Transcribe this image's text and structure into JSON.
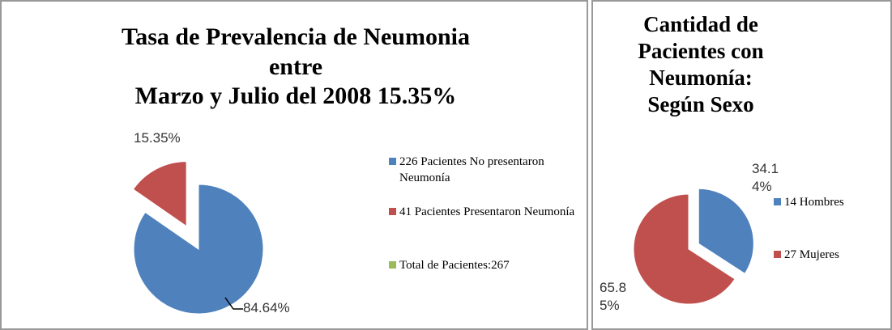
{
  "chart_data": [
    {
      "type": "pie",
      "title": [
        "Tasa de Prevalencia de Neumonia",
        "entre",
        "Marzo y Julio del 2008 15.35%"
      ],
      "categories": [
        "226  Pacientes No presentaron Neumonía",
        "41 Pacientes Presentaron Neumonía",
        "Total de Pacientes:267"
      ],
      "values": [
        84.64,
        15.35,
        0
      ],
      "value_labels": [
        "84.64%",
        "15.35%",
        null
      ],
      "colors": [
        "#4f81bd",
        "#c0504d",
        "#9bbb59"
      ]
    },
    {
      "type": "pie",
      "title": [
        "Cantidad de",
        "Pacientes con",
        "Neumonía:",
        "Según Sexo"
      ],
      "categories": [
        "14 Hombres",
        "27 Mujeres"
      ],
      "values": [
        34.14,
        65.85
      ],
      "value_labels": [
        "34.14%",
        "65.85%"
      ],
      "colors": [
        "#4f81bd",
        "#c0504d"
      ]
    }
  ]
}
